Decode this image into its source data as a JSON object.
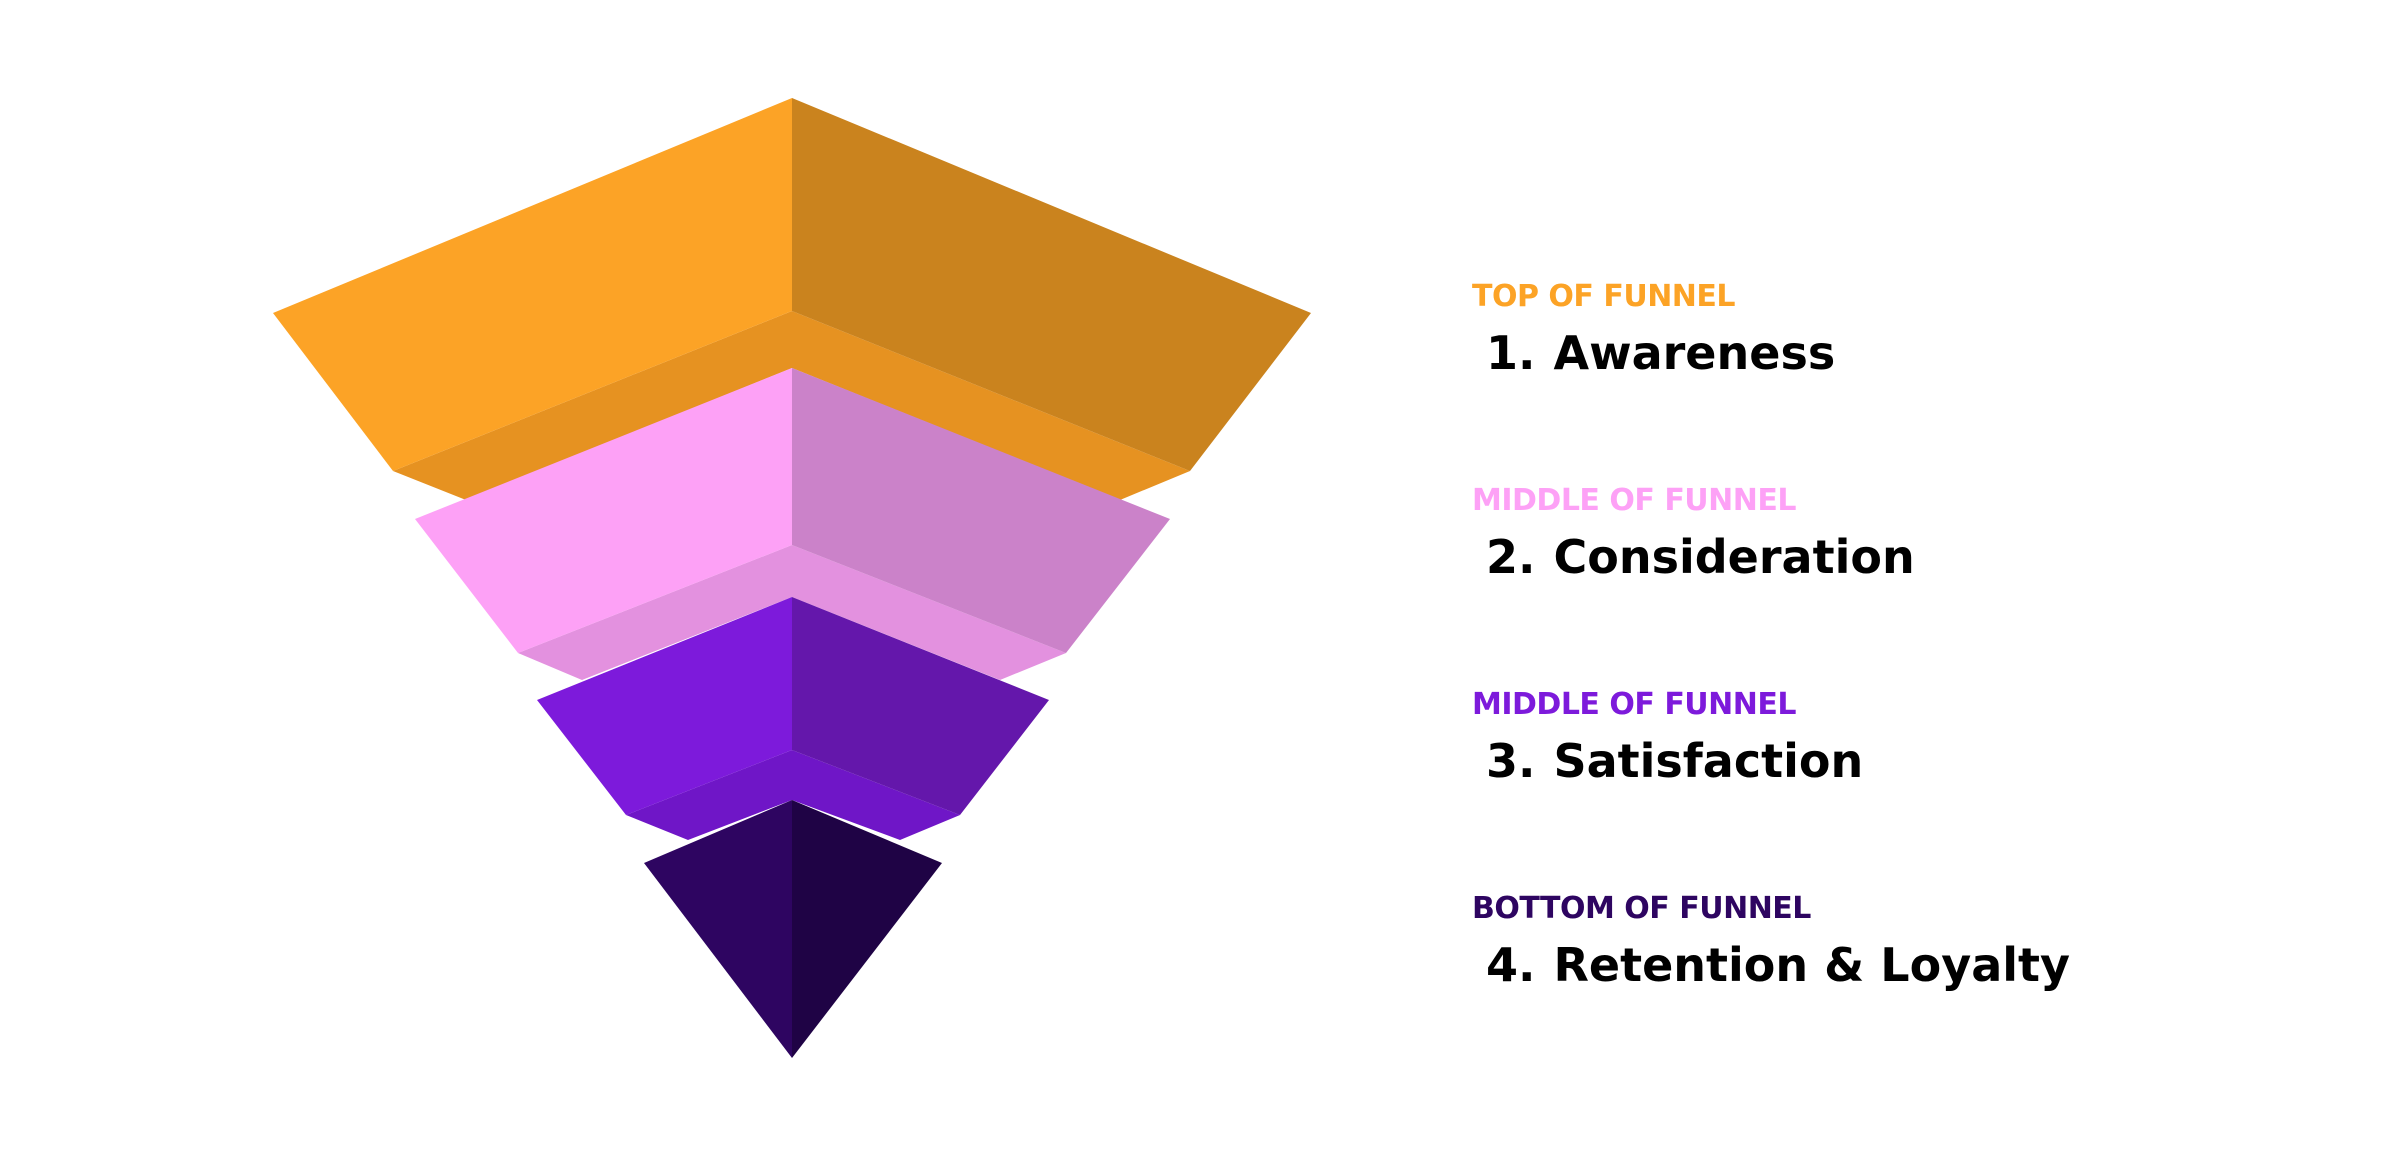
{
  "diagram": {
    "type": "funnel",
    "stages": [
      {
        "tag": "TOP OF FUNNEL",
        "number": "1.",
        "title": "Awareness",
        "tag_color": "#FCA326",
        "colors": {
          "left": "#FCA326",
          "right": "#CA831E",
          "inner": "#E69221"
        }
      },
      {
        "tag": "MIDDLE OF FUNNEL",
        "number": "2.",
        "title": "Consideration",
        "tag_color": "#FDA1F6",
        "colors": {
          "left": "#FDA1F6",
          "right": "#CB82C9",
          "inner": "#E391DF"
        }
      },
      {
        "tag": "MIDDLE OF FUNNEL",
        "number": "3.",
        "title": "Satisfaction",
        "tag_color": "#7D1ADB",
        "colors": {
          "left": "#7D1ADB",
          "right": "#6417AB",
          "inner": "#6F16C7"
        }
      },
      {
        "tag": "BOTTOM OF FUNNEL",
        "number": "4.",
        "title": "Retention & Loyalty",
        "tag_color": "#2E0561",
        "colors": {
          "left": "#2E0561",
          "right": "#1F0345",
          "inner": "#260452"
        }
      }
    ]
  }
}
